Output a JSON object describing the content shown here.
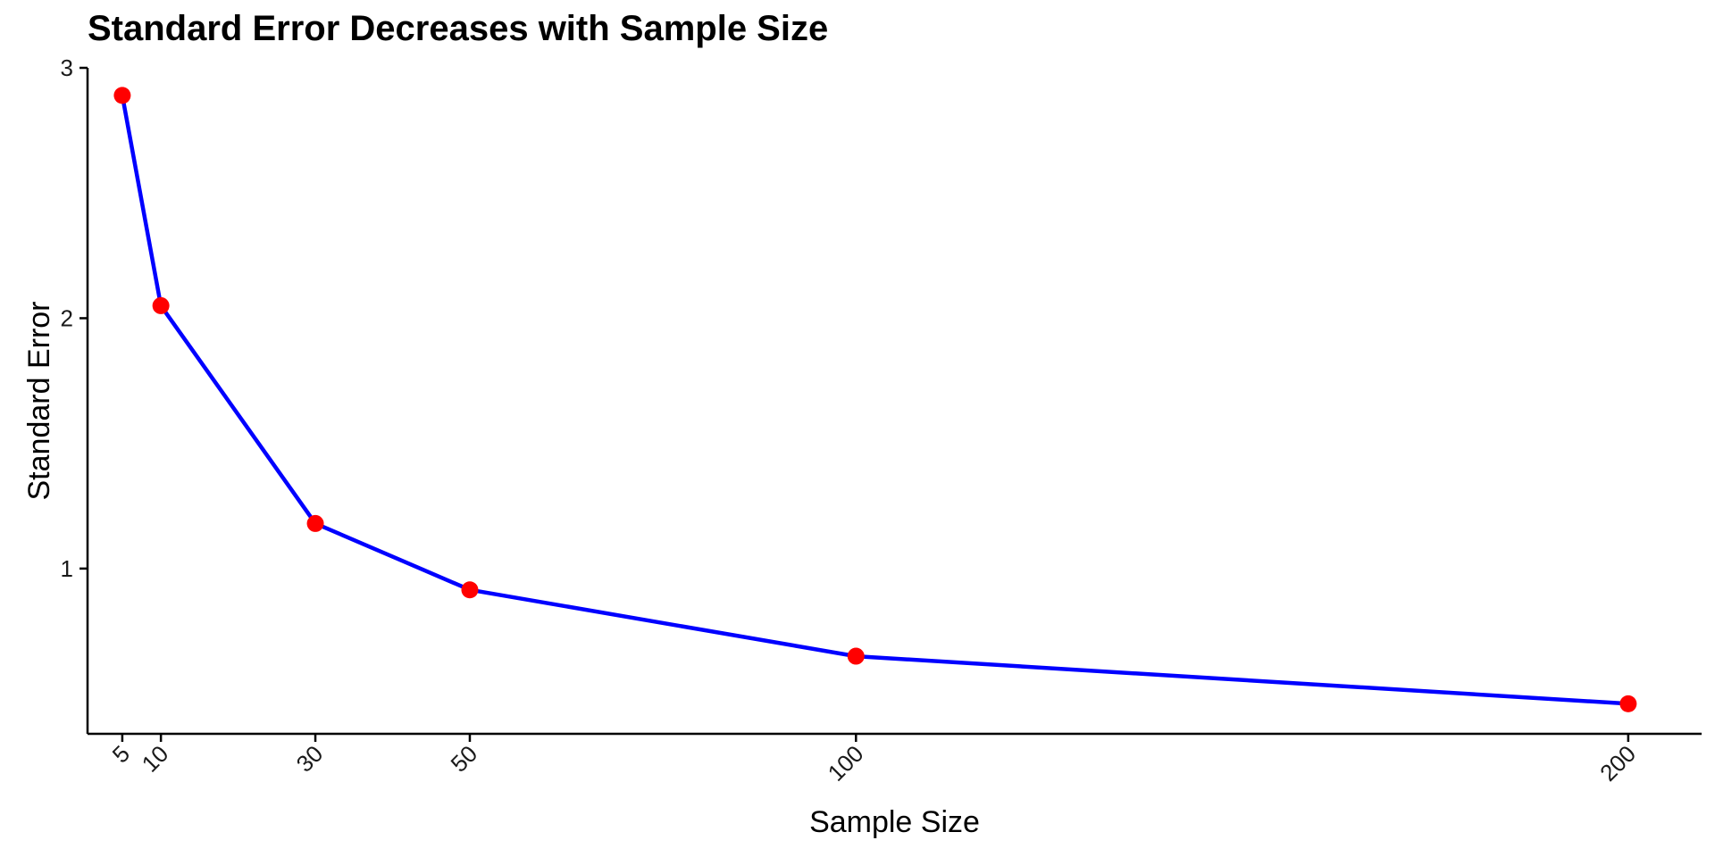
{
  "chart_data": {
    "type": "line",
    "title": "Standard Error Decreases with Sample Size",
    "xlabel": "Sample Size",
    "ylabel": "Standard Error",
    "x": [
      5,
      10,
      30,
      50,
      100,
      200
    ],
    "series": [
      {
        "values": [
          2.89,
          2.05,
          1.18,
          0.915,
          0.65,
          0.46
        ]
      }
    ],
    "x_ticks": [
      5,
      10,
      30,
      50,
      100,
      200
    ],
    "y_ticks": [
      1,
      2,
      3
    ],
    "xlim": [
      0.5,
      209.5
    ],
    "ylim": [
      0.34,
      3.0
    ],
    "grid": false,
    "legend": "none",
    "colors": {
      "line": "#0000ff",
      "points": "#ff0000",
      "axis": "#000000"
    }
  }
}
